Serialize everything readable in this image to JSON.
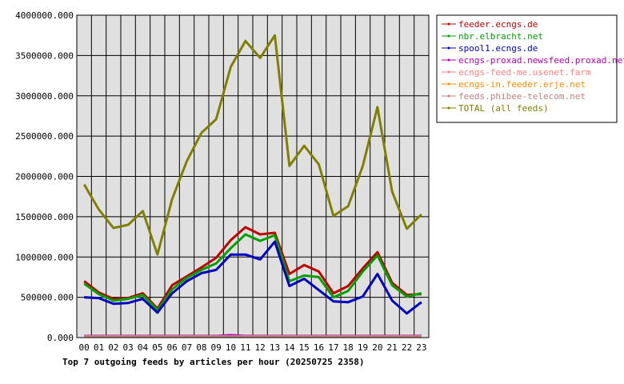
{
  "chart_data": {
    "type": "line",
    "title": "Top 7 outgoing feeds by articles per hour (20250725 2358)",
    "categories": [
      "00",
      "01",
      "02",
      "03",
      "04",
      "05",
      "06",
      "07",
      "08",
      "09",
      "10",
      "11",
      "12",
      "13",
      "14",
      "15",
      "16",
      "17",
      "18",
      "19",
      "20",
      "21",
      "22",
      "23"
    ],
    "ylim": [
      0,
      4000000
    ],
    "yticks": [
      "0.000",
      "500000.000",
      "1000000.000",
      "1500000.000",
      "2000000.000",
      "2500000.000",
      "3000000.000",
      "3500000.000",
      "4000000.000"
    ],
    "ytick_values": [
      0,
      500000,
      1000000,
      1500000,
      2000000,
      2500000,
      3000000,
      3500000,
      4000000
    ],
    "grid": true,
    "legend_position": "right",
    "series": [
      {
        "name": "feeder.ecngs.de",
        "color": "#c00000",
        "values": [
          700000,
          560000,
          480000,
          490000,
          550000,
          360000,
          650000,
          760000,
          870000,
          990000,
          1210000,
          1370000,
          1280000,
          1300000,
          790000,
          900000,
          820000,
          550000,
          640000,
          860000,
          1060000,
          680000,
          530000,
          540000
        ]
      },
      {
        "name": "nbr.elbracht.net",
        "color": "#00a000",
        "values": [
          670000,
          540000,
          460000,
          480000,
          530000,
          340000,
          600000,
          740000,
          840000,
          920000,
          1110000,
          1280000,
          1200000,
          1270000,
          700000,
          770000,
          750000,
          500000,
          580000,
          820000,
          1020000,
          650000,
          510000,
          550000
        ]
      },
      {
        "name": "spool1.ecngs.de",
        "color": "#0000c0",
        "values": [
          500000,
          490000,
          420000,
          430000,
          480000,
          310000,
          550000,
          700000,
          800000,
          840000,
          1030000,
          1030000,
          970000,
          1190000,
          640000,
          730000,
          590000,
          450000,
          440000,
          510000,
          790000,
          460000,
          300000,
          440000
        ]
      },
      {
        "name": "ecngs-proxad.newsfeed.proxad.net",
        "color": "#b000b0",
        "values": [
          20000,
          20000,
          20000,
          20000,
          20000,
          20000,
          20000,
          20000,
          20000,
          20000,
          30000,
          20000,
          20000,
          20000,
          20000,
          20000,
          20000,
          20000,
          20000,
          20000,
          20000,
          20000,
          20000,
          20000
        ]
      },
      {
        "name": "ecngs-feed-me.usenet.farm",
        "color": "#ff8080",
        "values": [
          15000,
          15000,
          15000,
          15000,
          15000,
          15000,
          15000,
          15000,
          15000,
          15000,
          15000,
          15000,
          15000,
          15000,
          15000,
          15000,
          15000,
          15000,
          15000,
          15000,
          15000,
          15000,
          15000,
          15000
        ]
      },
      {
        "name": "ecngs-in.feeder.erje.net",
        "color": "#ff8c00",
        "values": [
          10000,
          10000,
          10000,
          10000,
          10000,
          10000,
          10000,
          10000,
          10000,
          10000,
          10000,
          10000,
          10000,
          10000,
          10000,
          10000,
          10000,
          10000,
          10000,
          10000,
          10000,
          10000,
          10000,
          10000
        ]
      },
      {
        "name": "feeds.phibee-telecom.net",
        "color": "#c08080",
        "values": [
          12000,
          12000,
          12000,
          12000,
          12000,
          12000,
          12000,
          12000,
          12000,
          12000,
          12000,
          12000,
          12000,
          12000,
          12000,
          12000,
          12000,
          12000,
          12000,
          12000,
          12000,
          12000,
          12000,
          12000
        ]
      },
      {
        "name": "TOTAL (all feeds)",
        "color": "#808000",
        "values": [
          1900000,
          1590000,
          1360000,
          1400000,
          1570000,
          1030000,
          1720000,
          2190000,
          2540000,
          2710000,
          3360000,
          3680000,
          3470000,
          3750000,
          2130000,
          2380000,
          2150000,
          1510000,
          1630000,
          2130000,
          2860000,
          1810000,
          1350000,
          1530000
        ]
      }
    ]
  }
}
